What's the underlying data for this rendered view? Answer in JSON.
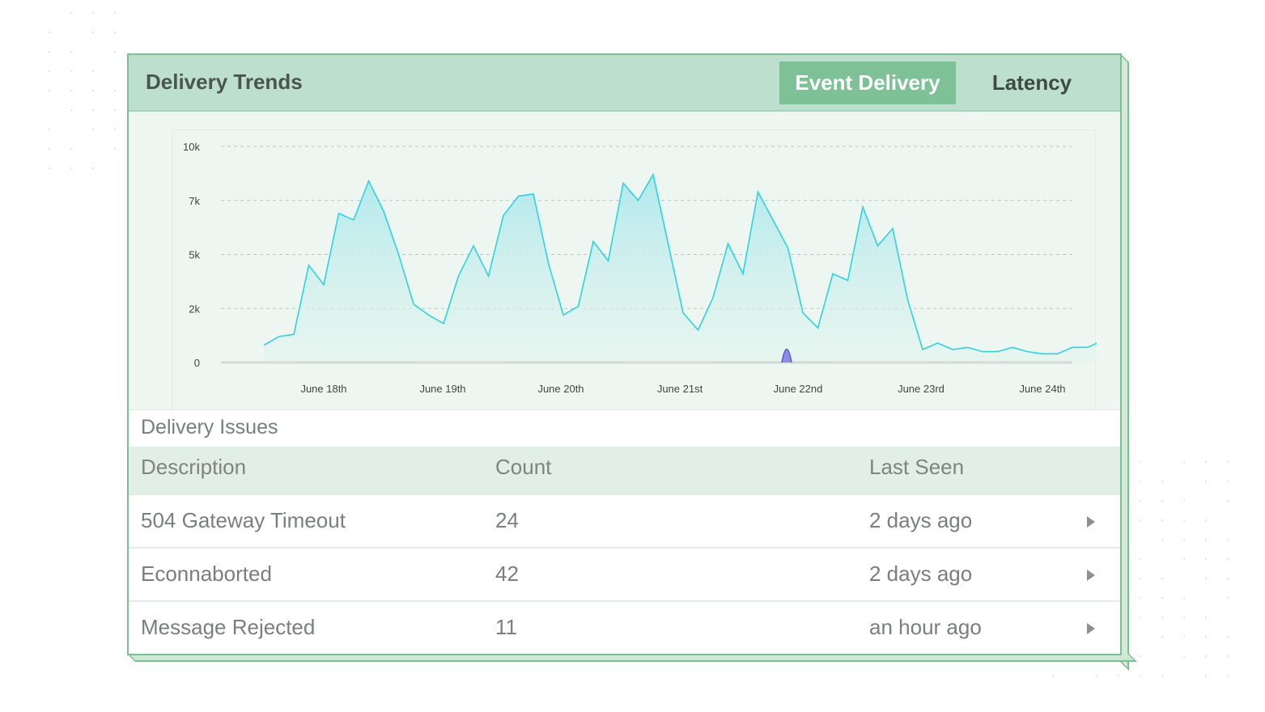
{
  "header": {
    "title": "Delivery Trends",
    "tabs": [
      {
        "label": "Event Delivery",
        "active": true
      },
      {
        "label": "Latency",
        "active": false
      }
    ]
  },
  "chart_data": {
    "type": "area",
    "y_ticks": [
      "10k",
      "7k",
      "5k",
      "2k",
      "0"
    ],
    "x_ticks": [
      "June 18th",
      "June 19th",
      "June 20th",
      "June 21st",
      "June 22nd",
      "June 23rd",
      "June 24th"
    ],
    "ylim": [
      0,
      10000
    ],
    "grid": true,
    "colors": {
      "series": "#2ed3de",
      "fill": "#b7ebee",
      "spike": "#5a57d6"
    },
    "series": [
      {
        "x": [
          "June 17th 12:00",
          "June 17th 15:00",
          "June 17th 18:00",
          "June 17th 21:00",
          "June 18th 00:00",
          "June 18th 03:00",
          "June 18th 06:00",
          "June 18th 09:00",
          "June 18th 12:00",
          "June 18th 15:00",
          "June 18th 18:00",
          "June 18th 21:00",
          "June 19th 00:00",
          "June 19th 03:00",
          "June 19th 06:00",
          "June 19th 09:00",
          "June 19th 12:00",
          "June 19th 15:00",
          "June 19th 18:00",
          "June 19th 21:00",
          "June 20th 00:00",
          "June 20th 03:00",
          "June 20th 06:00",
          "June 20th 09:00",
          "June 20th 12:00",
          "June 20th 15:00",
          "June 20th 18:00",
          "June 20th 21:00",
          "June 21st 00:00",
          "June 21st 03:00",
          "June 21st 06:00",
          "June 21st 09:00",
          "June 21st 12:00",
          "June 21st 15:00",
          "June 21st 18:00",
          "June 21st 21:00",
          "June 22nd 00:00",
          "June 22nd 03:00",
          "June 22nd 06:00",
          "June 22nd 09:00",
          "June 22nd 12:00",
          "June 22nd 15:00",
          "June 22nd 18:00",
          "June 22nd 21:00",
          "June 23rd 00:00",
          "June 23rd 03:00",
          "June 23rd 06:00",
          "June 23rd 09:00",
          "June 23rd 12:00",
          "June 23rd 15:00",
          "June 23rd 18:00",
          "June 23rd 21:00",
          "June 24th 00:00",
          "June 24th 03:00",
          "June 24th 06:00",
          "June 24th 09:00",
          "June 24th 12:00"
        ],
        "values": [
          800,
          1200,
          1300,
          4500,
          3600,
          6900,
          6600,
          8400,
          7000,
          5000,
          2700,
          2200,
          1800,
          4000,
          5400,
          4000,
          6800,
          7700,
          7800,
          4600,
          2200,
          2600,
          5600,
          4700,
          8300,
          7500,
          8700,
          5500,
          2300,
          1500,
          3000,
          5500,
          4100,
          7900,
          6600,
          5300,
          2300,
          1600,
          4100,
          3800,
          7200,
          5400,
          6200,
          2900,
          600,
          900,
          600,
          700,
          500,
          500,
          700,
          500,
          400,
          400,
          700,
          700,
          1000
        ]
      },
      {
        "x": [
          "June 22nd 00:00"
        ],
        "values": [
          700
        ]
      }
    ]
  },
  "issues": {
    "title": "Delivery Issues",
    "columns": [
      "Description",
      "Count",
      "Last Seen"
    ],
    "rows": [
      {
        "description": "504 Gateway Timeout",
        "count": "24",
        "last_seen": "2 days ago"
      },
      {
        "description": "Econnaborted",
        "count": "42",
        "last_seen": "2 days ago"
      },
      {
        "description": "Message Rejected",
        "count": "11",
        "last_seen": "an hour ago"
      }
    ]
  }
}
